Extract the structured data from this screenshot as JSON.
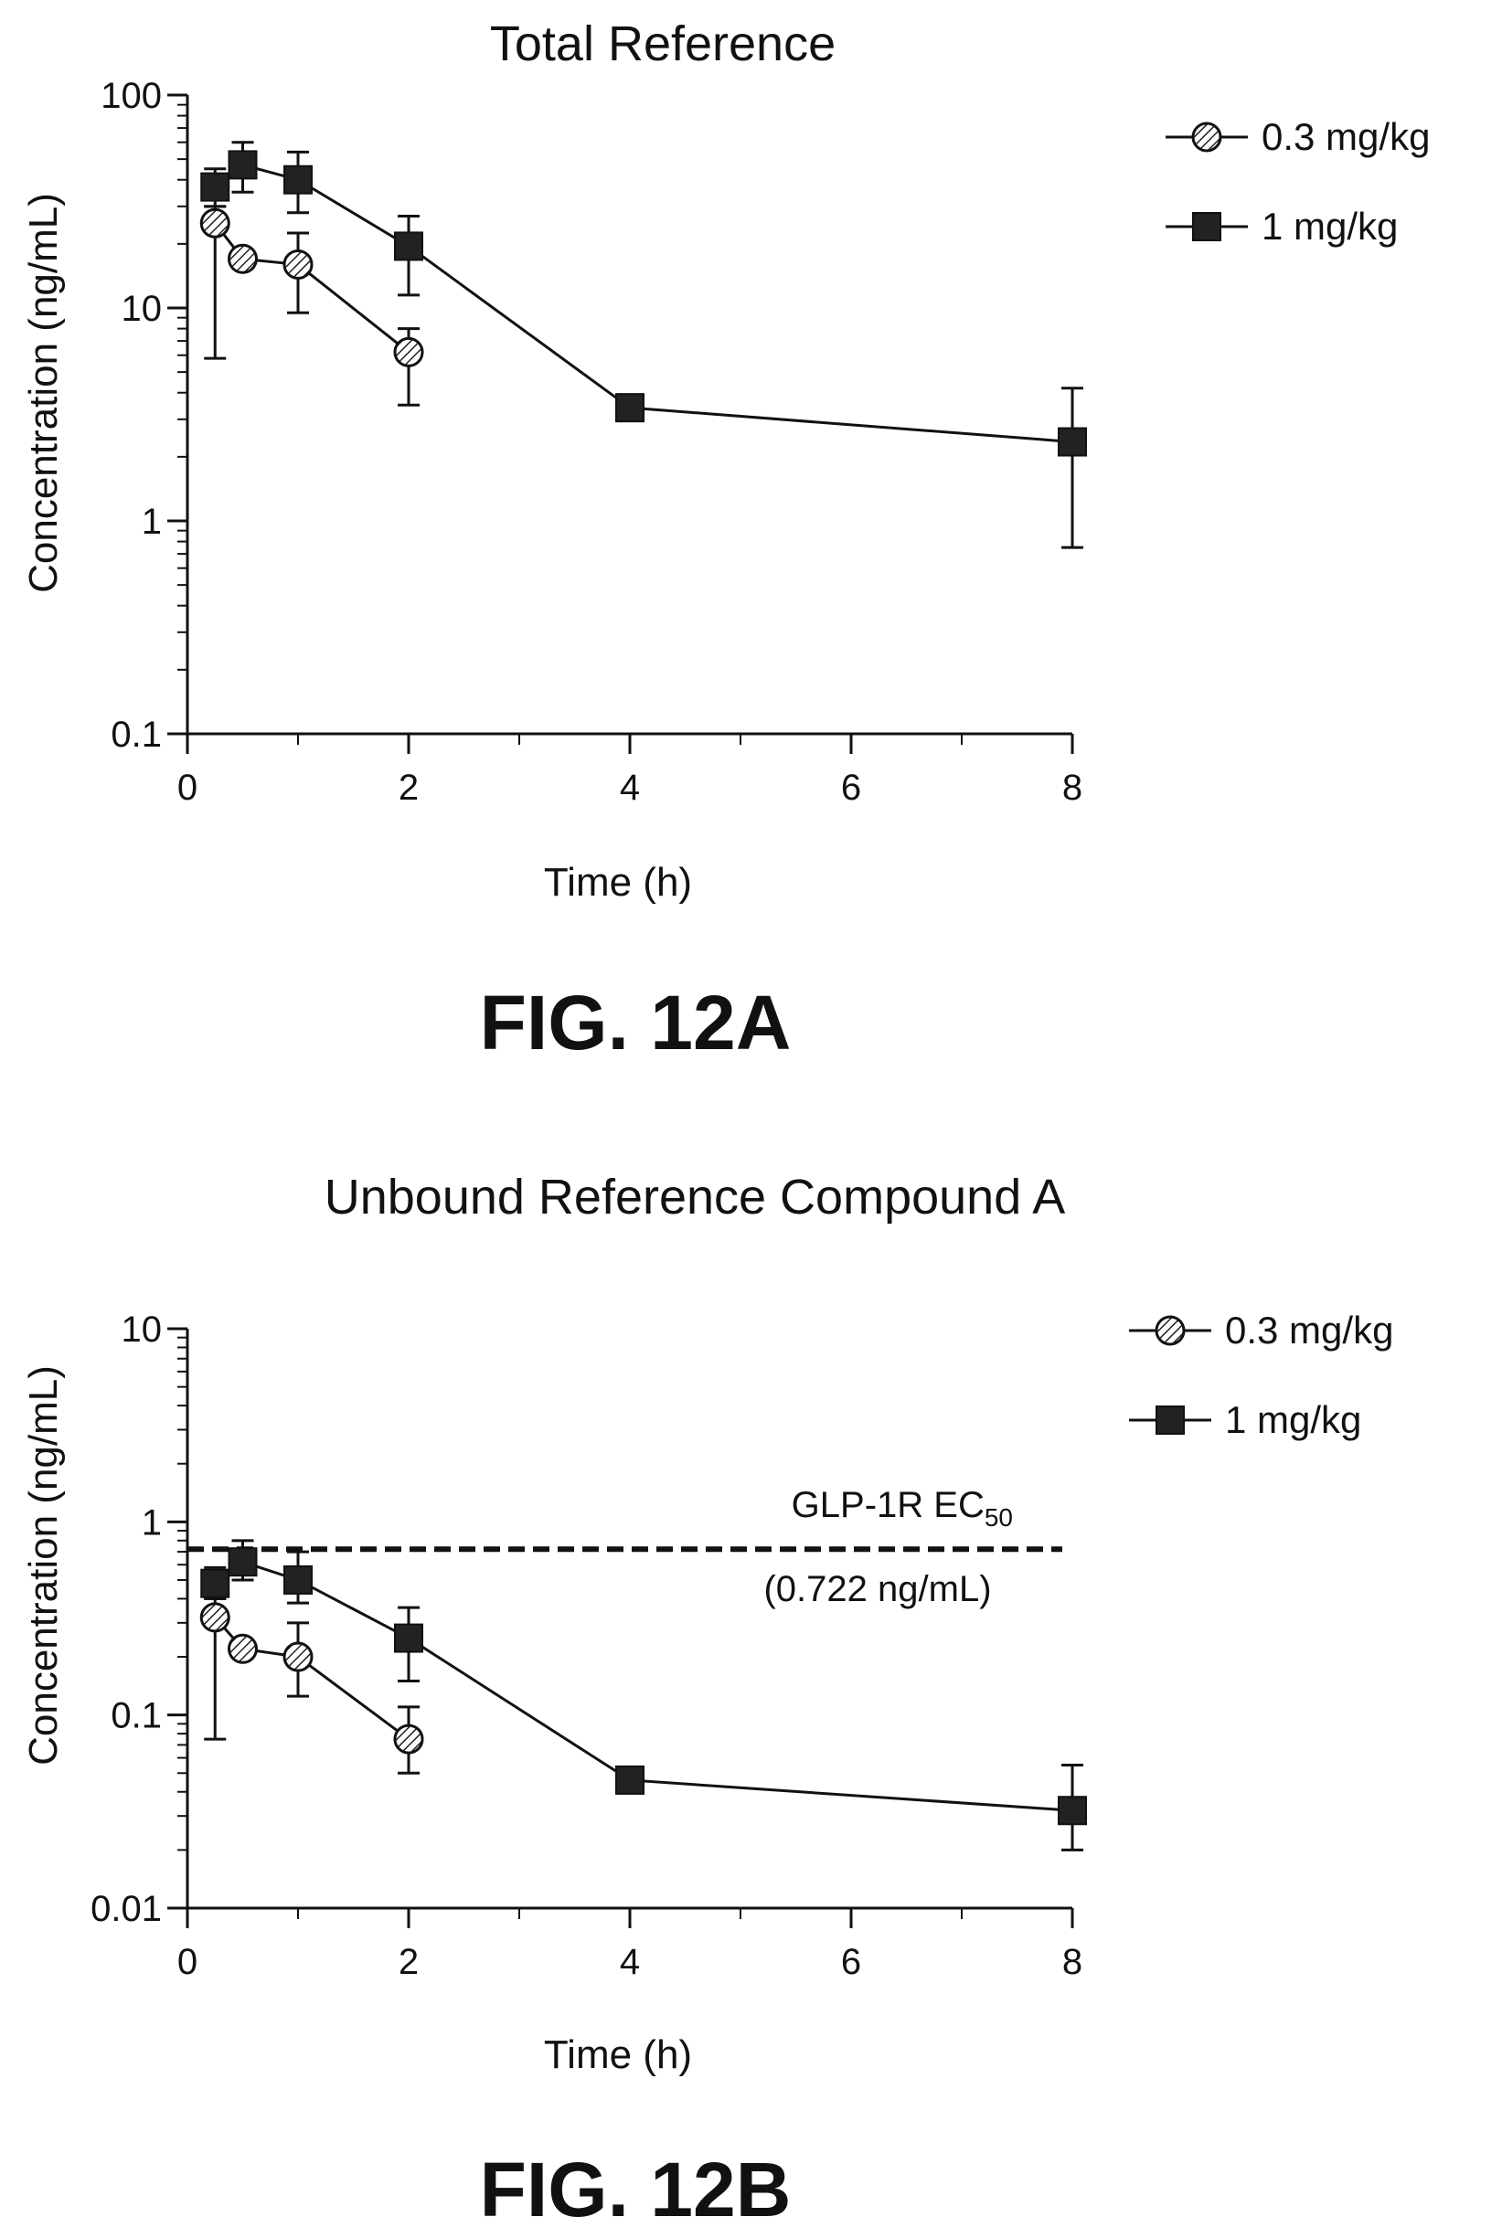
{
  "chart_data": [
    {
      "type": "line",
      "figure_label": "FIG. 12A",
      "title": "Total Reference",
      "xlabel": "Time (h)",
      "ylabel": "Concentration (ng/mL)",
      "yscale": "log",
      "xlim": [
        0,
        8
      ],
      "ylim": [
        0.1,
        100
      ],
      "xticks": [
        "0",
        "2",
        "4",
        "6",
        "8"
      ],
      "yticks": [
        "0.1",
        "1",
        "10",
        "100"
      ],
      "legend_position": "top-right",
      "grid": false,
      "series": [
        {
          "name": "0.3 mg/kg",
          "marker": "hatched-circle",
          "x": [
            0.25,
            0.5,
            1,
            2
          ],
          "y": [
            25,
            17,
            16,
            6.2
          ],
          "err_upper": [
            30,
            17,
            22.5,
            8
          ],
          "err_lower": [
            5.8,
            17,
            9.5,
            3.5
          ]
        },
        {
          "name": "1 mg/kg",
          "marker": "filled-square",
          "x": [
            0.25,
            0.5,
            1,
            2,
            4,
            8
          ],
          "y": [
            37,
            47,
            40,
            19.5,
            3.4,
            2.35
          ],
          "err_upper": [
            45,
            60,
            54,
            27,
            3.4,
            4.2
          ],
          "err_lower": [
            30,
            35,
            28,
            11.5,
            3.4,
            0.75
          ]
        }
      ]
    },
    {
      "type": "line",
      "figure_label": "FIG. 12B",
      "title": "Unbound Reference Compound A",
      "xlabel": "Time (h)",
      "ylabel": "Concentration (ng/mL)",
      "yscale": "log",
      "xlim": [
        0,
        8
      ],
      "ylim": [
        0.01,
        10
      ],
      "xticks": [
        "0",
        "2",
        "4",
        "6",
        "8"
      ],
      "yticks": [
        "0.01",
        "0.1",
        "1",
        "10"
      ],
      "legend_position": "top-right",
      "grid": false,
      "reference_line": {
        "y": 0.722,
        "label_main": "GLP-1R EC",
        "label_sub": "50",
        "value_label": "(0.722 ng/mL)",
        "style": "dashed"
      },
      "series": [
        {
          "name": "0.3 mg/kg",
          "marker": "hatched-circle",
          "x": [
            0.25,
            0.5,
            1,
            2
          ],
          "y": [
            0.32,
            0.22,
            0.2,
            0.075
          ],
          "err_upper": [
            0.4,
            0.22,
            0.3,
            0.11
          ],
          "err_lower": [
            0.075,
            0.22,
            0.125,
            0.05
          ]
        },
        {
          "name": "1 mg/kg",
          "marker": "filled-square",
          "x": [
            0.25,
            0.5,
            1,
            2,
            4,
            8
          ],
          "y": [
            0.48,
            0.62,
            0.5,
            0.25,
            0.046,
            0.032
          ],
          "err_upper": [
            0.58,
            0.8,
            0.7,
            0.36,
            0.046,
            0.055
          ],
          "err_lower": [
            0.4,
            0.5,
            0.38,
            0.15,
            0.046,
            0.02
          ]
        }
      ]
    }
  ]
}
